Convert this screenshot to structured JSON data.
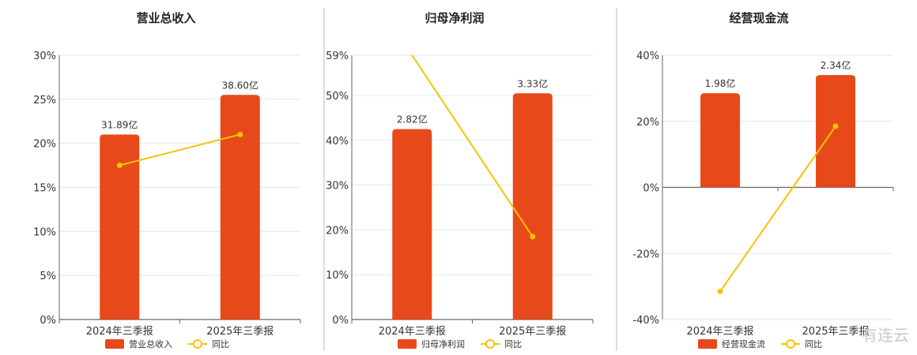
{
  "colors": {
    "bar": "#e8491b",
    "line": "#f5c400",
    "grid": "#e6e6e6",
    "axis": "#666666",
    "divider": "#bbbbbb"
  },
  "chart_data": [
    {
      "type": "bar",
      "title": "营业总收入",
      "categories": [
        "2024年三季报",
        "2025年三季报"
      ],
      "ylim": [
        0,
        30
      ],
      "yticks": [
        "0%",
        "5%",
        "10%",
        "15%",
        "20%",
        "25%",
        "30%"
      ],
      "ytick_values": [
        0,
        5,
        10,
        15,
        20,
        25,
        30
      ],
      "bar_values": [
        21,
        25.5
      ],
      "bar_labels": [
        "31.89亿",
        "38.60亿"
      ],
      "line_values": [
        17.5,
        21
      ],
      "legend": [
        "营业总收入",
        "同比"
      ],
      "grid": true,
      "legend_position": "bottom"
    },
    {
      "type": "bar",
      "title": "归母净利润",
      "categories": [
        "2024年三季报",
        "2025年三季报"
      ],
      "ylim": [
        0,
        59
      ],
      "yticks": [
        "0%",
        "10%",
        "20%",
        "30%",
        "40%",
        "50%",
        "59%"
      ],
      "ytick_values": [
        0,
        10,
        20,
        30,
        40,
        50,
        59
      ],
      "bar_values": [
        42.5,
        50.5
      ],
      "bar_labels": [
        "2.82亿",
        "3.33亿"
      ],
      "line_values": [
        59,
        18.5
      ],
      "legend": [
        "归母净利润",
        "同比"
      ],
      "grid": true,
      "legend_position": "bottom"
    },
    {
      "type": "bar",
      "title": "经营现金流",
      "categories": [
        "2024年三季报",
        "2025年三季报"
      ],
      "ylim": [
        -40,
        40
      ],
      "yticks": [
        "-40%",
        "-20%",
        "0%",
        "20%",
        "40%"
      ],
      "ytick_values": [
        -40,
        -20,
        0,
        20,
        40
      ],
      "bar_values": [
        28.5,
        34
      ],
      "bar_labels": [
        "1.98亿",
        "2.34亿"
      ],
      "line_values": [
        -31.5,
        18.5
      ],
      "legend": [
        "经营现金流",
        "同比"
      ],
      "grid": true,
      "legend_position": "bottom"
    }
  ],
  "watermark": "有连云"
}
